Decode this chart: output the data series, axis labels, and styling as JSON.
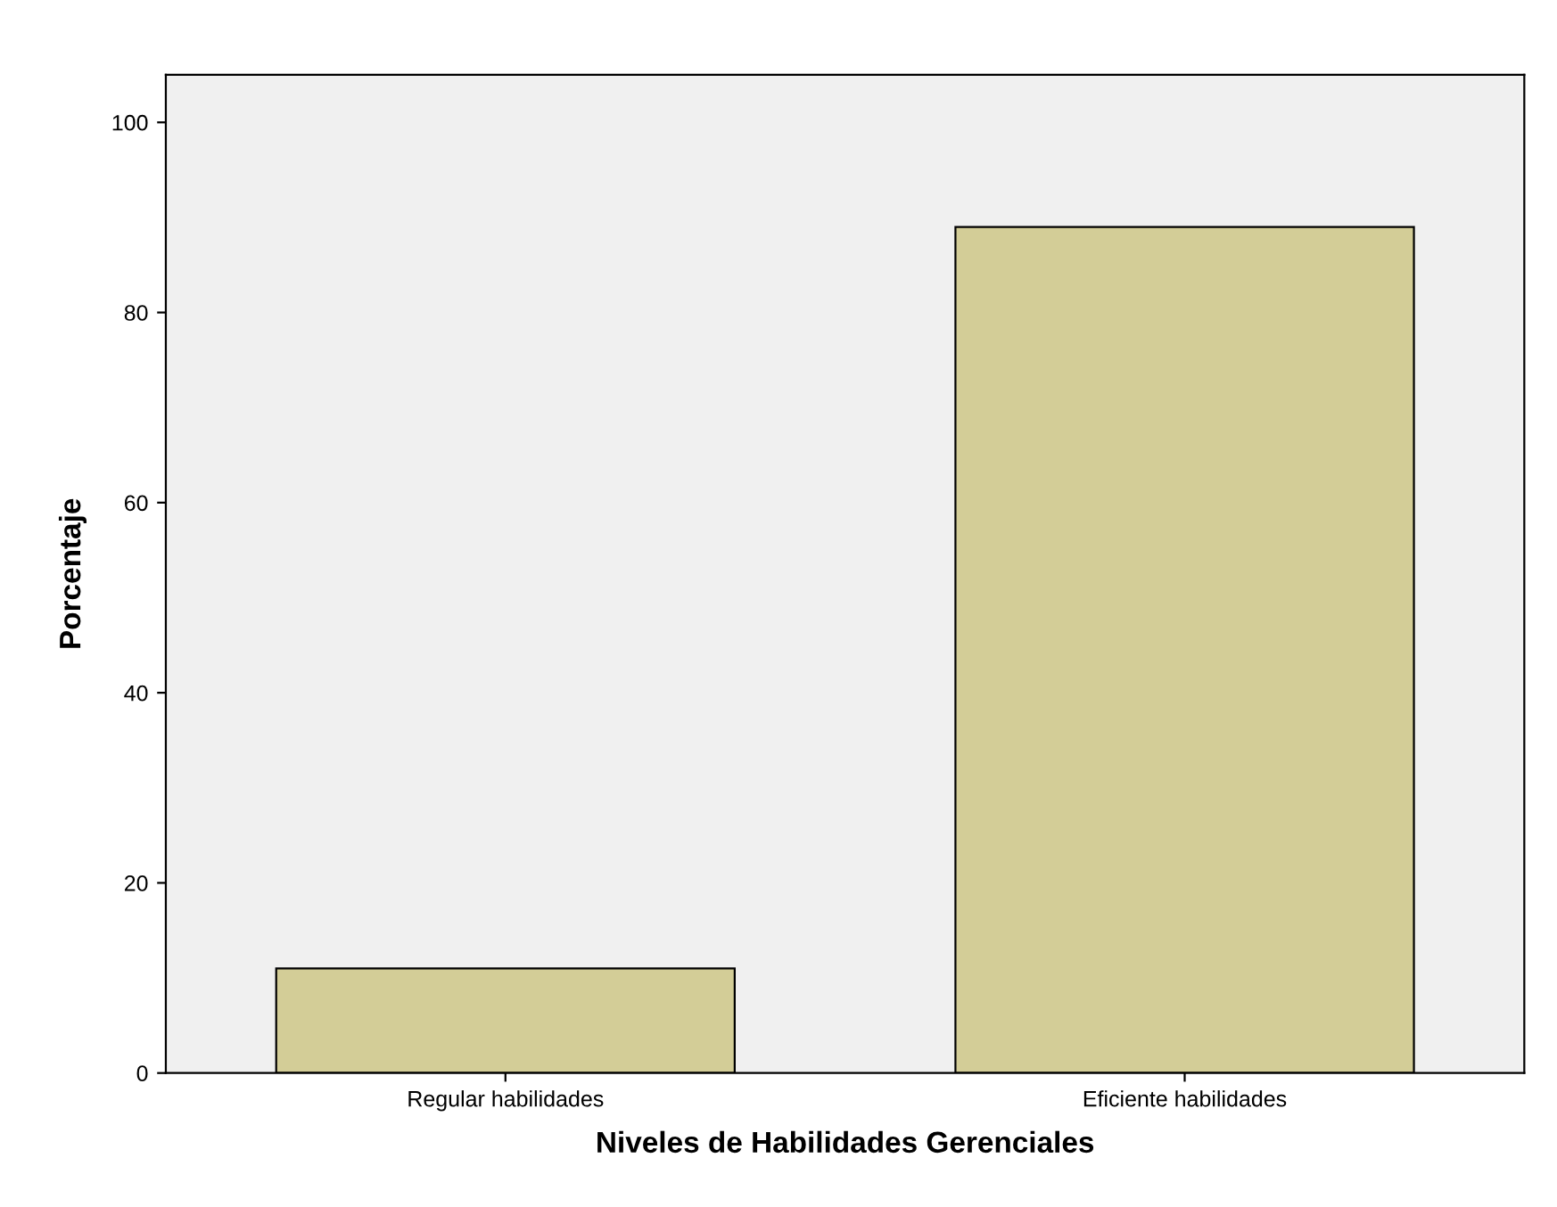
{
  "chart_data": {
    "type": "bar",
    "xlabel": "Niveles de Habilidades Gerenciales",
    "ylabel": "Porcentaje",
    "categories": [
      "Regular habilidades",
      "Eficiente habilidades"
    ],
    "values": [
      11,
      89
    ],
    "color": "#d3cd97",
    "ylim": [
      0,
      105
    ],
    "yticks": [
      0,
      20,
      40,
      60,
      80,
      100
    ],
    "grid": false
  }
}
